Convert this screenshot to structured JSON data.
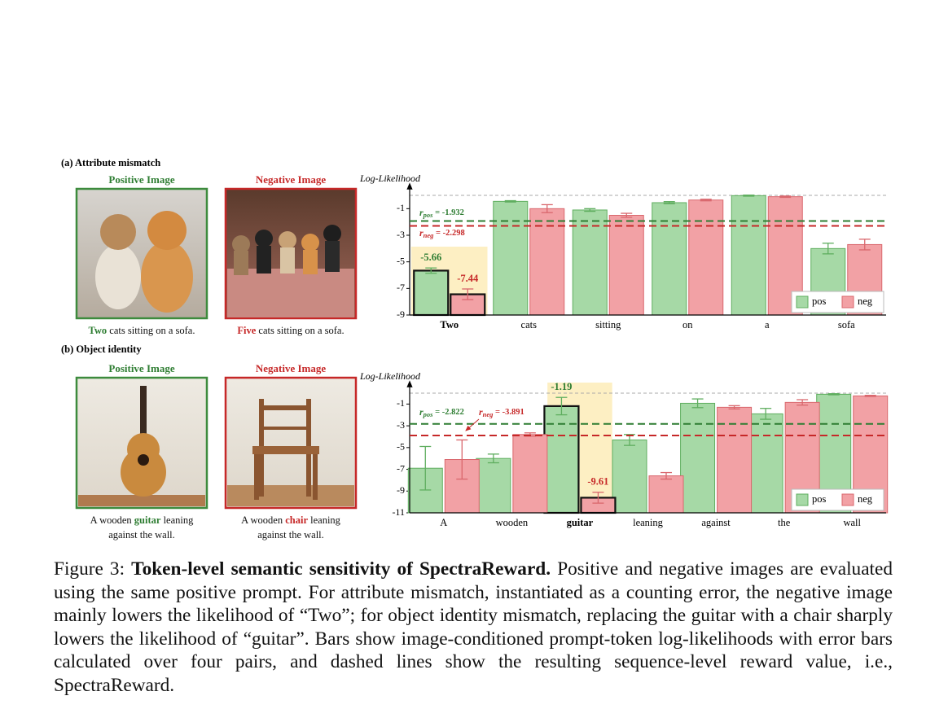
{
  "figure": {
    "panels": [
      {
        "label": "(a) Attribute mismatch",
        "positive_title": "Positive Image",
        "negative_title": "Negative Image",
        "positive_caption": [
          {
            "text": "Two",
            "style": "pos"
          },
          {
            "text": " cats sitting on a sofa."
          }
        ],
        "negative_caption": [
          {
            "text": "Five",
            "style": "neg"
          },
          {
            "text": " cats sitting on a sofa."
          }
        ]
      },
      {
        "label": "(b) Object identity",
        "positive_title": "Positive Image",
        "negative_title": "Negative Image",
        "positive_caption": [
          {
            "text": "A wooden "
          },
          {
            "text": "guitar",
            "style": "pos"
          },
          {
            "text": " leaning against the wall."
          }
        ],
        "negative_caption": [
          {
            "text": "A wooden "
          },
          {
            "text": "chair",
            "style": "neg"
          },
          {
            "text": " leaning against the wall."
          }
        ]
      }
    ],
    "caption": {
      "label": "Figure 3:",
      "title": "Token-level semantic sensitivity of SpectraReward.",
      "text": "Positive and negative images are evaluated using the same positive prompt. For attribute mismatch, instantiated as a counting error, the negative image mainly lowers the likelihood of “Two”; for object identity mismatch, replacing the guitar with a chair sharply lowers the likelihood of “guitar”.  Bars show image-conditioned prompt-token log-likelihoods with error bars calculated over four pairs, and dashed lines show the resulting sequence-level reward value, i.e., SpectraReward."
    }
  },
  "chart_data": [
    {
      "type": "bar",
      "ylabel": "Log-Likelihood",
      "categories": [
        "Two",
        "cats",
        "sitting",
        "on",
        "a",
        "sofa"
      ],
      "highlight": 0,
      "series": [
        {
          "name": "pos",
          "color": "#a6d9a6",
          "edgecolor": "#5fae5f",
          "text_color": "#2e7d32",
          "values": [
            -5.66,
            -0.45,
            -1.1,
            -0.55,
            -0.02,
            -4.0
          ],
          "errors": [
            0.2,
            0.05,
            0.1,
            0.08,
            0.04,
            0.4
          ]
        },
        {
          "name": "neg",
          "color": "#f2a1a5",
          "edgecolor": "#d9676d",
          "text_color": "#c62828",
          "values": [
            -7.44,
            -1.0,
            -1.5,
            -0.35,
            -0.1,
            -3.7
          ],
          "errors": [
            0.4,
            0.3,
            0.15,
            0.06,
            0.05,
            0.4
          ]
        }
      ],
      "ylim": [
        -9,
        0
      ],
      "yticks": [
        -1,
        -3,
        -5,
        -7,
        -9
      ],
      "reference_lines": [
        {
          "symbol": "r",
          "subscript": "pos",
          "text": " = -1.932",
          "value": -1.932,
          "color": "#2e7d32"
        },
        {
          "symbol": "r",
          "subscript": "neg",
          "text": " = -2.298",
          "value": -2.298,
          "color": "#c62828"
        }
      ],
      "legend": "lower right"
    },
    {
      "type": "bar",
      "ylabel": "Log-Likelihood",
      "categories": [
        "A",
        "wooden",
        "guitar",
        "leaning",
        "against",
        "the",
        "wall"
      ],
      "highlight": 2,
      "series": [
        {
          "name": "pos",
          "color": "#a6d9a6",
          "edgecolor": "#5fae5f",
          "text_color": "#2e7d32",
          "values": [
            -6.9,
            -6.0,
            -1.19,
            -4.3,
            -0.93,
            -1.9,
            -0.1
          ],
          "errors": [
            2.0,
            0.4,
            0.8,
            0.5,
            0.4,
            0.5,
            0.05
          ]
        },
        {
          "name": "neg",
          "color": "#f2a1a5",
          "edgecolor": "#d9676d",
          "text_color": "#c62828",
          "values": [
            -6.1,
            -3.8,
            -9.61,
            -7.6,
            -1.3,
            -0.85,
            -0.25
          ],
          "errors": [
            1.8,
            0.15,
            0.5,
            0.3,
            0.15,
            0.25,
            0.05
          ]
        }
      ],
      "ylim": [
        -11,
        0
      ],
      "yticks": [
        -1,
        -3,
        -5,
        -7,
        -9,
        -11
      ],
      "reference_lines": [
        {
          "symbol": "r",
          "subscript": "pos",
          "text": " = -2.822",
          "value": -2.822,
          "color": "#2e7d32"
        },
        {
          "symbol": "r",
          "subscript": "neg",
          "text": " = -3.891",
          "value": -3.891,
          "color": "#c62828"
        }
      ],
      "legend": "lower right"
    }
  ]
}
